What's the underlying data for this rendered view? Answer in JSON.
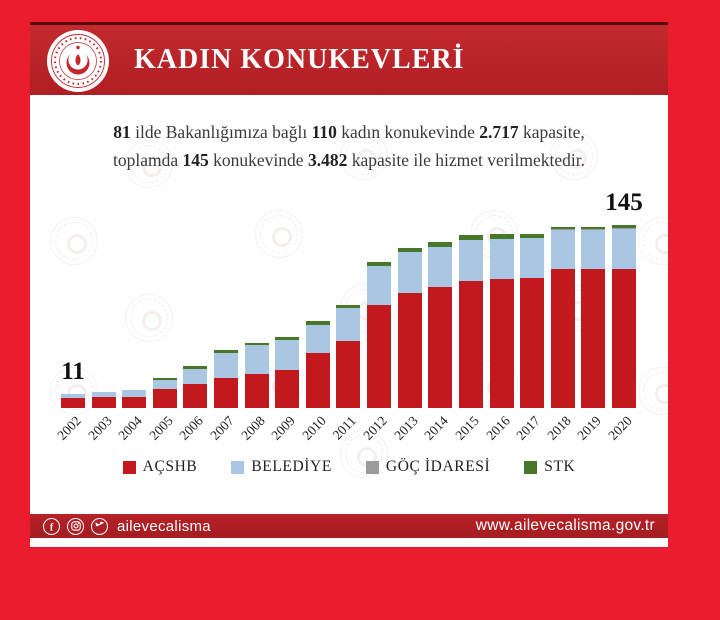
{
  "header": {
    "title": "KADIN KONUKEVLERİ",
    "logo": "ministry-of-family-emblem"
  },
  "subtitle": {
    "lines": [
      [
        {
          "text": "81",
          "bold": true
        },
        {
          "text": " ilde Bakanlığımıza bağlı ",
          "bold": false
        },
        {
          "text": "110",
          "bold": true
        },
        {
          "text": " kadın konukevinde ",
          "bold": false
        },
        {
          "text": "2.717",
          "bold": true
        },
        {
          "text": " kapasite,",
          "bold": false
        }
      ],
      [
        {
          "text": "toplamda ",
          "bold": false
        },
        {
          "text": "145",
          "bold": true
        },
        {
          "text": " konukevinde ",
          "bold": false
        },
        {
          "text": "3.482",
          "bold": true
        },
        {
          "text": " kapasite ile hizmet verilmektedir.",
          "bold": false
        }
      ]
    ]
  },
  "chart_data": {
    "type": "bar",
    "subtype": "stacked",
    "categories": [
      "2002",
      "2003",
      "2004",
      "2005",
      "2006",
      "2007",
      "2008",
      "2009",
      "2010",
      "2011",
      "2012",
      "2013",
      "2014",
      "2015",
      "2016",
      "2017",
      "2018",
      "2019",
      "2020"
    ],
    "series": [
      {
        "name": "AÇSHB",
        "color": "#C2191F",
        "values": [
          8,
          9,
          9,
          15,
          19,
          24,
          27,
          30,
          44,
          53,
          82,
          91,
          96,
          101,
          102,
          103,
          110,
          110,
          110
        ]
      },
      {
        "name": "BELEDİYE",
        "color": "#A9C7E2",
        "values": [
          3,
          4,
          5,
          7,
          12,
          20,
          23,
          24,
          22,
          26,
          31,
          33,
          32,
          32,
          32,
          32,
          31,
          31,
          32
        ]
      },
      {
        "name": "GÖÇ İDARESİ",
        "color": "#9B9B9B",
        "values": [
          0,
          0,
          0,
          0,
          0,
          0,
          0,
          0,
          0,
          0,
          0,
          0,
          0,
          0,
          0,
          0,
          1,
          1,
          1
        ]
      },
      {
        "name": "STK",
        "color": "#47782A",
        "values": [
          0,
          0,
          0,
          2,
          2,
          2,
          2,
          2,
          3,
          3,
          3,
          3,
          4,
          4,
          4,
          3,
          2,
          2,
          2
        ]
      }
    ],
    "annotations": [
      {
        "category": "2002",
        "label": "11"
      },
      {
        "category": "2020",
        "label": "145"
      }
    ],
    "ylim": [
      0,
      150
    ],
    "grid": false,
    "legend_position": "bottom",
    "title": "",
    "xlabel": "",
    "ylabel": ""
  },
  "colors": {
    "page_bg": "#EB1C2D",
    "header_bg": "#B01E23",
    "footer_bg": "#AD2124",
    "bar_red": "#C2191F",
    "bar_blue": "#A9C7E2",
    "bar_gray": "#9B9B9B",
    "bar_green": "#47782A"
  },
  "footer": {
    "icons": [
      "facebook-icon",
      "instagram-icon",
      "twitter-icon"
    ],
    "social_handle": "ailevecalisma",
    "url": "www.ailevecalisma.gov.tr"
  }
}
